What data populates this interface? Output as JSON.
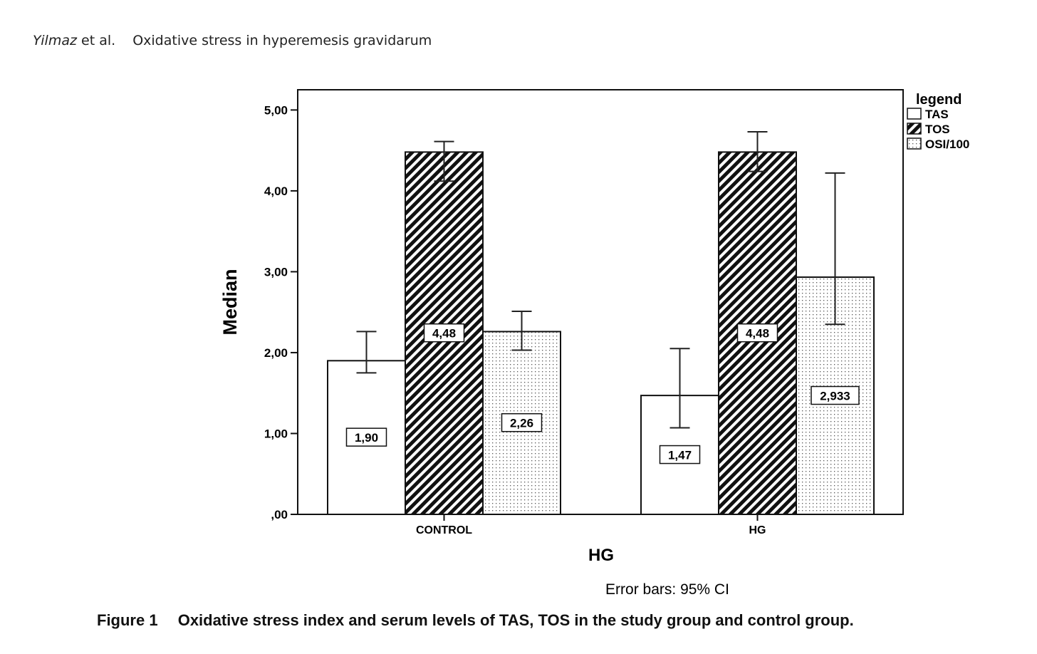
{
  "header": {
    "authors": "Yilmaz",
    "etal": "et al.",
    "title": "Oxidative stress in hyperemesis gravidarum"
  },
  "caption": {
    "label": "Figure 1",
    "text": "Oxidative stress index and serum levels of TAS, TOS in the study group and control group."
  },
  "chart_data": {
    "type": "bar",
    "categories": [
      "CONTROL",
      "HG"
    ],
    "xlabel": "HG",
    "ylabel": "Median",
    "ylim": [
      0,
      5.25
    ],
    "yticks": [
      0,
      1,
      2,
      3,
      4,
      5
    ],
    "ytick_labels": [
      ",00",
      "1,00",
      "2,00",
      "3,00",
      "4,00",
      "5,00"
    ],
    "legend_title": "legend",
    "legend_position": "top-right",
    "note": "Error bars: 95% CI",
    "series": [
      {
        "name": "TAS",
        "pattern": "white",
        "values": [
          1.9,
          1.47
        ],
        "labels": [
          "1,90",
          "1,47"
        ],
        "ci_low": [
          1.75,
          1.07
        ],
        "ci_high": [
          2.26,
          2.05
        ]
      },
      {
        "name": "TOS",
        "pattern": "hatch",
        "values": [
          4.48,
          4.48
        ],
        "labels": [
          "4,48",
          "4,48"
        ],
        "ci_low": [
          4.12,
          4.24
        ],
        "ci_high": [
          4.61,
          4.73
        ]
      },
      {
        "name": "OSI/100",
        "pattern": "dots",
        "values": [
          2.26,
          2.933
        ],
        "labels": [
          "2,26",
          "2,933"
        ],
        "ci_low": [
          2.03,
          2.35
        ],
        "ci_high": [
          2.51,
          4.22
        ]
      }
    ]
  }
}
